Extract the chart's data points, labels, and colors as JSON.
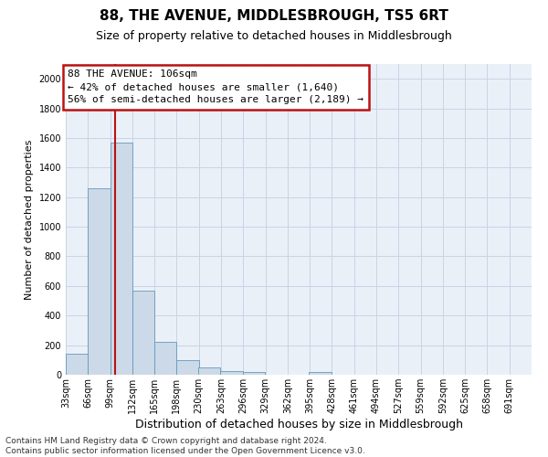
{
  "title": "88, THE AVENUE, MIDDLESBROUGH, TS5 6RT",
  "subtitle": "Size of property relative to detached houses in Middlesbrough",
  "xlabel": "Distribution of detached houses by size in Middlesbrough",
  "ylabel": "Number of detached properties",
  "footnote1": "Contains HM Land Registry data © Crown copyright and database right 2024.",
  "footnote2": "Contains public sector information licensed under the Open Government Licence v3.0.",
  "annotation_title": "88 THE AVENUE: 106sqm",
  "annotation_line1": "← 42% of detached houses are smaller (1,640)",
  "annotation_line2": "56% of semi-detached houses are larger (2,189) →",
  "property_size": 106,
  "bar_left_edges": [
    33,
    66,
    99,
    132,
    165,
    198,
    230,
    263,
    296,
    329,
    362,
    395,
    428,
    461,
    494,
    527,
    559,
    592,
    625,
    658
  ],
  "bar_heights": [
    140,
    1260,
    1570,
    570,
    220,
    100,
    50,
    25,
    20,
    0,
    0,
    20,
    0,
    0,
    0,
    0,
    0,
    0,
    0,
    0
  ],
  "bin_width": 33,
  "bar_color": "#ccd9e8",
  "bar_edge_color": "#6699bb",
  "red_line_color": "#bb1111",
  "annotation_box_color": "#bb1111",
  "ylim": [
    0,
    2100
  ],
  "yticks": [
    0,
    200,
    400,
    600,
    800,
    1000,
    1200,
    1400,
    1600,
    1800,
    2000
  ],
  "xtick_labels": [
    "33sqm",
    "66sqm",
    "99sqm",
    "132sqm",
    "165sqm",
    "198sqm",
    "230sqm",
    "263sqm",
    "296sqm",
    "329sqm",
    "362sqm",
    "395sqm",
    "428sqm",
    "461sqm",
    "494sqm",
    "527sqm",
    "559sqm",
    "592sqm",
    "625sqm",
    "658sqm",
    "691sqm"
  ],
  "grid_color": "#c8d4e4",
  "bg_color": "#eaf0f8",
  "title_fontsize": 11,
  "subtitle_fontsize": 9,
  "xlabel_fontsize": 9,
  "ylabel_fontsize": 8,
  "tick_fontsize": 7,
  "annotation_fontsize": 8,
  "footnote_fontsize": 6.5
}
